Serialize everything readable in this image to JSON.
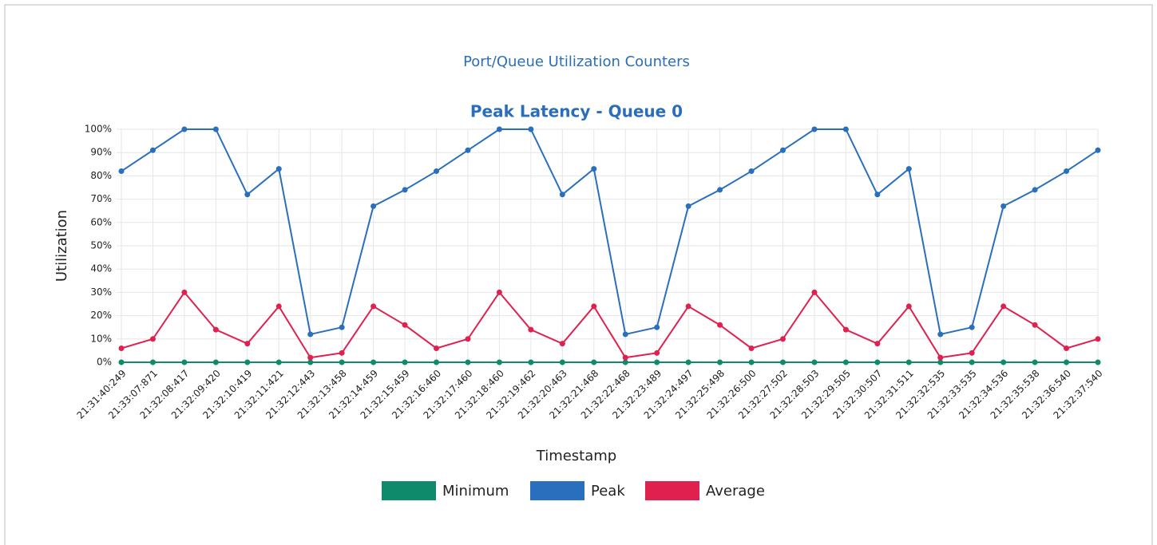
{
  "page_title": "Port/Queue Utilization Counters",
  "chart_data": {
    "type": "line",
    "title": "Peak Latency - Queue 0",
    "x_label": "Timestamp",
    "y_label": "Utilization",
    "categories": [
      "21:31:40:249",
      "21:33:07:871",
      "21:32:08:417",
      "21:32:09:420",
      "21:32:10:419",
      "21:32:11:421",
      "21:32:12:443",
      "21:32:13:458",
      "21:32:14:459",
      "21:32:15:459",
      "21:32:16:460",
      "21:32:17:460",
      "21:32:18:460",
      "21:32:19:462",
      "21:32:20:463",
      "21:32:21:468",
      "21:32:22:468",
      "21:32:23:489",
      "21:32:24:497",
      "21:32:25:498",
      "21:32:26:500",
      "21:32:27:502",
      "21:32:28:503",
      "21:32:29:505",
      "21:32:30:507",
      "21:32:31:511",
      "21:32:32:535",
      "21:32:33:535",
      "21:32:34:536",
      "21:32:35:538",
      "21:32:36:540",
      "21:32:37:540"
    ],
    "series": [
      {
        "name": "Minimum",
        "color": "#0f8a6b",
        "values": [
          0,
          0,
          0,
          0,
          0,
          0,
          0,
          0,
          0,
          0,
          0,
          0,
          0,
          0,
          0,
          0,
          0,
          0,
          0,
          0,
          0,
          0,
          0,
          0,
          0,
          0,
          0,
          0,
          0,
          0,
          0,
          0
        ]
      },
      {
        "name": "Peak",
        "color": "#2a6fbd",
        "values": [
          82,
          91,
          100,
          100,
          72,
          83,
          12,
          15,
          67,
          74,
          82,
          91,
          100,
          100,
          72,
          83,
          12,
          15,
          67,
          74,
          82,
          91,
          100,
          100,
          72,
          83,
          12,
          15,
          67,
          74,
          82,
          91
        ]
      },
      {
        "name": "Average",
        "color": "#e0204f",
        "values": [
          6,
          10,
          30,
          14,
          8,
          24,
          2,
          4,
          24,
          16,
          6,
          10,
          30,
          14,
          8,
          24,
          2,
          4,
          24,
          16,
          6,
          10,
          30,
          14,
          8,
          24,
          2,
          4,
          24,
          16,
          6,
          10
        ]
      }
    ],
    "ylim": [
      0,
      100
    ],
    "yticks": [
      {
        "value": 0,
        "label": "0%"
      },
      {
        "value": 10,
        "label": "10%"
      },
      {
        "value": 20,
        "label": "20%"
      },
      {
        "value": 30,
        "label": "30%"
      },
      {
        "value": 40,
        "label": "40%"
      },
      {
        "value": 50,
        "label": "50%"
      },
      {
        "value": 60,
        "label": "60%"
      },
      {
        "value": 70,
        "label": "70%"
      },
      {
        "value": 80,
        "label": "80%"
      },
      {
        "value": 90,
        "label": "90%"
      },
      {
        "value": 100,
        "label": "100%"
      }
    ],
    "grid": true,
    "legend": "bottom"
  }
}
